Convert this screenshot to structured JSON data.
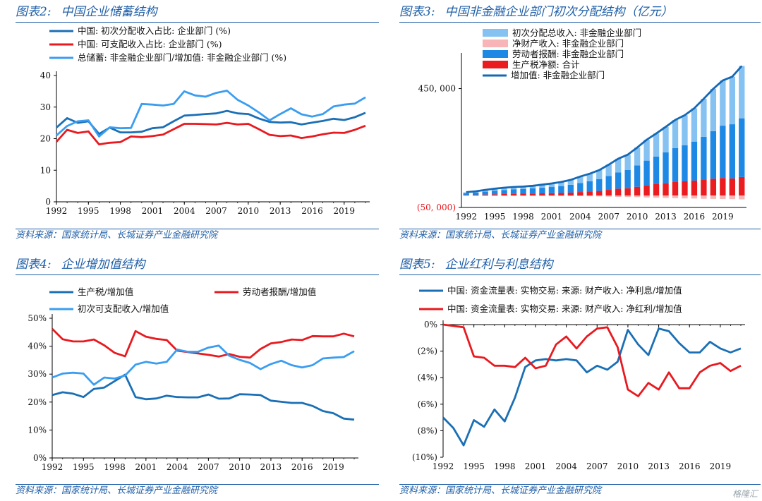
{
  "source_text": "资料来源：国家统计局、长城证券产业金融研究院",
  "watermark": "格隆汇",
  "chart_data": [
    {
      "id": "c2",
      "panel_title_no": "图表2:",
      "panel_title": "中国企业储蓄结构",
      "type": "line",
      "x": [
        1992,
        1993,
        1994,
        1995,
        1996,
        1997,
        1998,
        1999,
        2000,
        2001,
        2002,
        2003,
        2004,
        2005,
        2006,
        2007,
        2008,
        2009,
        2010,
        2011,
        2012,
        2013,
        2014,
        2015,
        2016,
        2017,
        2018,
        2019,
        2020,
        2021
      ],
      "x_ticks": [
        "1992",
        "1995",
        "1998",
        "2001",
        "2004",
        "2007",
        "2010",
        "2013",
        "2016",
        "2019"
      ],
      "y_ticks": [
        "0",
        "10",
        "20",
        "30",
        "40"
      ],
      "ylim": [
        0,
        40
      ],
      "legend_position": "top-left",
      "series": [
        {
          "name": "中国: 初次分配收入占比: 企业部门 (%)",
          "color": "#1a6fb5",
          "values": [
            23.5,
            26.5,
            25,
            25.5,
            21.5,
            23.5,
            22,
            22,
            22.2,
            23.3,
            23.6,
            25.5,
            27.3,
            27.5,
            27.8,
            28,
            28.8,
            28,
            27.8,
            26.4,
            25.3,
            25.1,
            25.2,
            24.5,
            25.1,
            25.6,
            26.3,
            25.9,
            26.8,
            28.2
          ]
        },
        {
          "name": "中国: 可支配收入占比: 企业部门 (%)",
          "color": "#e8191f",
          "values": [
            19,
            22.8,
            21.8,
            22.3,
            18.2,
            18.7,
            18.9,
            20.7,
            20.5,
            20.8,
            21.3,
            23,
            24.7,
            24.7,
            24.6,
            24.5,
            25,
            24.5,
            24.7,
            23,
            21.2,
            20.8,
            21,
            20.2,
            20.7,
            21.4,
            21.9,
            21.8,
            22.8,
            24.1
          ]
        },
        {
          "name": "总储蓄: 非金融企业部门/增加值: 非金融企业部门 (%)",
          "color": "#3a9df0",
          "values": [
            21,
            24,
            25.5,
            25.8,
            20.7,
            23.6,
            23.3,
            23.4,
            31,
            30.8,
            30.5,
            31,
            35,
            33.7,
            33.3,
            34.5,
            35.2,
            32.3,
            30.5,
            28.3,
            25.8,
            27.8,
            29.6,
            27.7,
            27,
            27.8,
            30.2,
            30.8,
            31.1,
            33.1
          ]
        }
      ]
    },
    {
      "id": "c3",
      "panel_title_no": "图表3:",
      "panel_title": "中国非金融企业部门初次分配结构（亿元）",
      "type": "bar",
      "x": [
        1992,
        1993,
        1994,
        1995,
        1996,
        1997,
        1998,
        1999,
        2000,
        2001,
        2002,
        2003,
        2004,
        2005,
        2006,
        2007,
        2008,
        2009,
        2010,
        2011,
        2012,
        2013,
        2014,
        2015,
        2016,
        2017,
        2018,
        2019,
        2020,
        2021
      ],
      "x_ticks": [
        "1992",
        "1995",
        "1998",
        "2001",
        "2004",
        "2007",
        "2010",
        "2013",
        "2016",
        "2019"
      ],
      "y_ticks": [
        "450, 000",
        "(50, 000)"
      ],
      "ylim": [
        -50000,
        600000
      ],
      "legend_position": "top-left",
      "series": [
        {
          "name": "初次分配总收入: 非金融企业部门",
          "color": "#85c2f2",
          "kind": "bar",
          "values": [
            4000,
            5500,
            7500,
            9000,
            9500,
            10000,
            10500,
            11000,
            13000,
            15000,
            17000,
            21000,
            27000,
            32000,
            38000,
            48000,
            58000,
            64000,
            75000,
            88000,
            97000,
            107000,
            118000,
            126000,
            140000,
            160000,
            178000,
            190000,
            200000,
            220000
          ]
        },
        {
          "name": "净财产收入: 非金融企业部门",
          "color": "#f7b5b8",
          "kind": "bar",
          "values": [
            -800,
            -900,
            -1000,
            -1100,
            -1200,
            -1300,
            -1300,
            -1400,
            -1500,
            -1600,
            -1800,
            -2000,
            -2500,
            -3000,
            -3500,
            -4500,
            -5500,
            -6000,
            -6500,
            -8000,
            -9000,
            -10000,
            -11000,
            -12000,
            -12500,
            -13500,
            -14000,
            -14500,
            -15000,
            -16000
          ]
        },
        {
          "name": "劳动者报酬: 非金融企业部门",
          "color": "#1e88e5",
          "kind": "bar",
          "values": [
            7000,
            9000,
            12000,
            15000,
            17000,
            19000,
            20000,
            21500,
            23500,
            26000,
            29000,
            33000,
            38000,
            43000,
            50000,
            58000,
            68000,
            77000,
            90000,
            104000,
            116000,
            130000,
            143000,
            152000,
            164000,
            180000,
            200000,
            220000,
            228000,
            247000
          ]
        },
        {
          "name": "生产税净额: 合计",
          "color": "#ea1c1f",
          "kind": "bar",
          "values": [
            2500,
            3300,
            4500,
            5500,
            6500,
            7500,
            8000,
            8700,
            9300,
            10000,
            11000,
            12500,
            15000,
            17000,
            19500,
            24000,
            29000,
            31000,
            37000,
            43000,
            48000,
            52000,
            57000,
            60000,
            63000,
            67000,
            71000,
            74000,
            72000,
            78000
          ]
        },
        {
          "name": "增加值: 非金融企业部门",
          "color": "#1668b3",
          "kind": "line",
          "values": [
            14000,
            18000,
            24000,
            29000,
            33000,
            36000,
            38000,
            41000,
            46000,
            51000,
            57000,
            66000,
            80000,
            92000,
            107000,
            130000,
            155000,
            172000,
            202000,
            235000,
            261000,
            289000,
            318000,
            338000,
            367000,
            407000,
            449000,
            484000,
            500000,
            545000
          ]
        }
      ]
    },
    {
      "id": "c4",
      "panel_title_no": "图表4:",
      "panel_title": "企业增加值结构",
      "type": "line",
      "x": [
        1992,
        1993,
        1994,
        1995,
        1996,
        1997,
        1998,
        1999,
        2000,
        2001,
        2002,
        2003,
        2004,
        2005,
        2006,
        2007,
        2008,
        2009,
        2010,
        2011,
        2012,
        2013,
        2014,
        2015,
        2016,
        2017,
        2018,
        2019,
        2020,
        2021
      ],
      "x_ticks": [
        "1992",
        "1995",
        "1998",
        "2001",
        "2004",
        "2007",
        "2010",
        "2013",
        "2016",
        "2019"
      ],
      "y_ticks": [
        "0%",
        "10%",
        "20%",
        "30%",
        "40%",
        "50%"
      ],
      "ylim": [
        0,
        50
      ],
      "legend_position": "top",
      "series": [
        {
          "name": "生产税/增加值",
          "color": "#1a6fb5",
          "values": [
            22.5,
            23.5,
            23,
            21.8,
            24.7,
            25.2,
            27.5,
            29.8,
            21.8,
            21,
            21.3,
            22.3,
            21.8,
            21.7,
            21.7,
            22.7,
            21.2,
            21.3,
            22.8,
            22.7,
            22.5,
            20.5,
            20.1,
            19.7,
            19.7,
            18.6,
            16.8,
            16,
            14.1,
            13.7
          ]
        },
        {
          "name": "劳动者报酬/增加值",
          "color": "#e8191f",
          "values": [
            46.2,
            42.5,
            41.7,
            41.7,
            42.4,
            40.3,
            37.6,
            36.4,
            45.4,
            43.4,
            42.6,
            42.2,
            38.4,
            37.9,
            37.4,
            36.9,
            36.3,
            37.2,
            36.2,
            35.9,
            39,
            41,
            41.5,
            42.4,
            42.2,
            43.6,
            43.5,
            43.5,
            44.5,
            43.5
          ]
        },
        {
          "name": "初次可支配收入/增加值",
          "color": "#3a9df0",
          "values": [
            28.8,
            30.2,
            30.5,
            30.2,
            26.2,
            28.8,
            28.4,
            29.5,
            33.4,
            34.4,
            33.8,
            34.4,
            38.8,
            38,
            38,
            39.5,
            40.2,
            36.6,
            35.1,
            34,
            31.8,
            33.6,
            34.8,
            33.2,
            32.4,
            33.2,
            35.6,
            35.9,
            36.1,
            38.2
          ]
        }
      ]
    },
    {
      "id": "c5",
      "panel_title_no": "图表5:",
      "panel_title": "企业红利与利息结构",
      "type": "line",
      "x": [
        1992,
        1993,
        1994,
        1995,
        1996,
        1997,
        1998,
        1999,
        2000,
        2001,
        2002,
        2003,
        2004,
        2005,
        2006,
        2007,
        2008,
        2009,
        2010,
        2011,
        2012,
        2013,
        2014,
        2015,
        2016,
        2017,
        2018,
        2019,
        2020,
        2021
      ],
      "x_ticks": [
        "1992",
        "1995",
        "1998",
        "2001",
        "2004",
        "2007",
        "2010",
        "2013",
        "2016",
        "2019"
      ],
      "y_ticks": [
        "0%",
        "(2%)",
        "(4%)",
        "(6%)",
        "(8%)",
        "(10%)"
      ],
      "ylim": [
        -10,
        0
      ],
      "legend_position": "top",
      "series": [
        {
          "name": "中国: 资金流量表: 实物交易: 来源: 财产收入: 净利息/增加值",
          "color": "#1a6fb5",
          "values": [
            -7,
            -7.8,
            -9.1,
            -7.2,
            -7.7,
            -6.4,
            -7.3,
            -5.5,
            -3.2,
            -2.7,
            -2.6,
            -2.7,
            -2.6,
            -2.7,
            -3.6,
            -3.1,
            -3.4,
            -2.8,
            -0.4,
            -1.5,
            -2.3,
            -0.3,
            -0.5,
            -1.4,
            -2.1,
            -2.1,
            -1.3,
            -1.8,
            -2.1,
            -1.8
          ]
        },
        {
          "name": "中国: 资金流量表: 实物交易: 来源: 财产收入: 净红利/增加值",
          "color": "#e8191f",
          "values": [
            0,
            -0.1,
            -0.2,
            -2.4,
            -2.5,
            -3.1,
            -3.1,
            -3.2,
            -2.5,
            -3.3,
            -3.1,
            -1.5,
            -0.9,
            -1.8,
            -0.9,
            -0.3,
            -0.2,
            -1.7,
            -4.9,
            -5.4,
            -4.4,
            -4.9,
            -3.6,
            -4.8,
            -4.8,
            -3.6,
            -3.1,
            -2.9,
            -3.5,
            -3.1
          ]
        }
      ]
    }
  ]
}
